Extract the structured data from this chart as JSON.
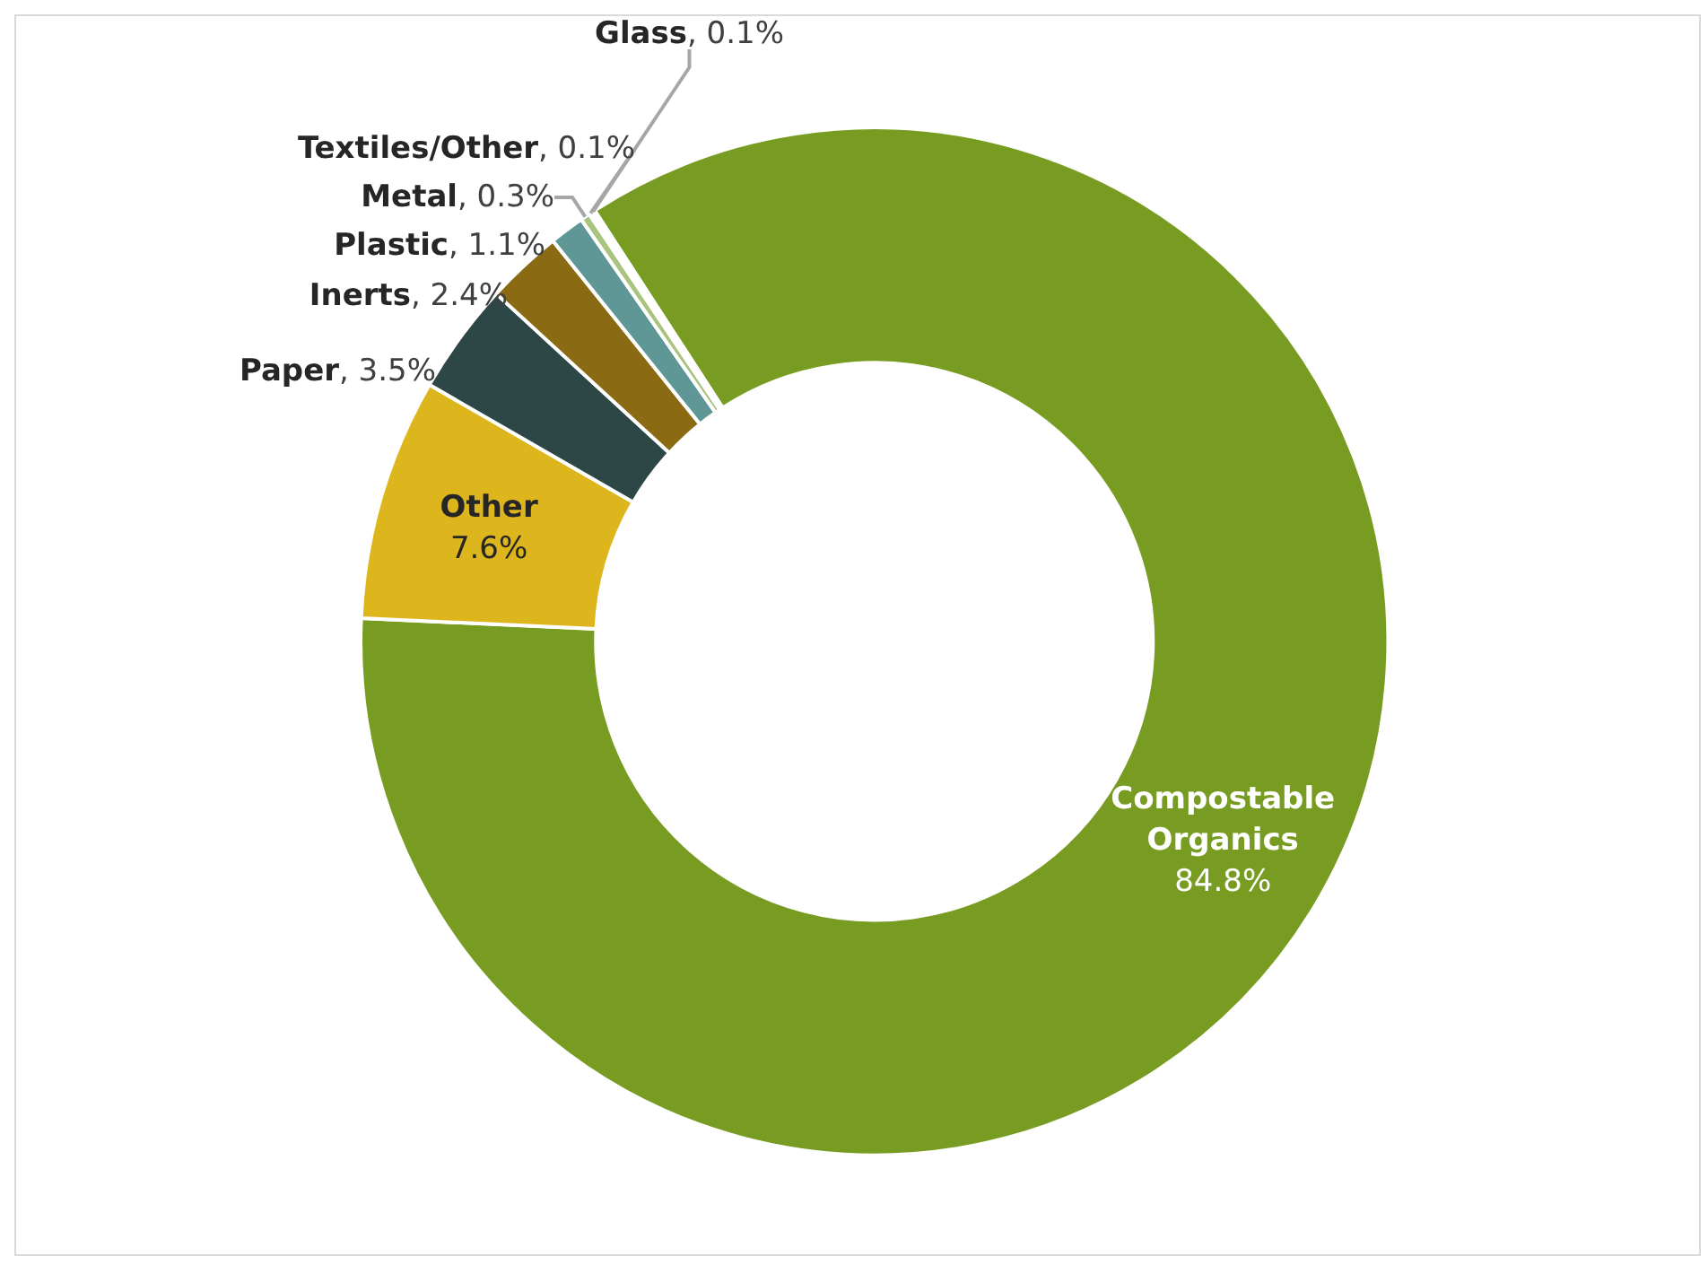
{
  "chart_data": {
    "type": "donut",
    "categories": [
      "Compostable Organics",
      "Other",
      "Paper",
      "Inerts",
      "Plastic",
      "Metal",
      "Textiles/Other",
      "Glass"
    ],
    "values": [
      84.8,
      7.6,
      3.5,
      2.4,
      1.1,
      0.3,
      0.1,
      0.1
    ],
    "value_labels": [
      "84.8%",
      "7.6%",
      ", 3.5%",
      ", 2.4%",
      ", 1.1%",
      ", 0.3%",
      ", 0.1%",
      ", 0.1%"
    ],
    "colors": [
      "#789c21",
      "#ddb61d",
      "#2d4746",
      "#8a6a12",
      "#5f9696",
      "#a9c47f",
      "#c8c8c8",
      "#dfe8c8"
    ],
    "legend": false
  }
}
